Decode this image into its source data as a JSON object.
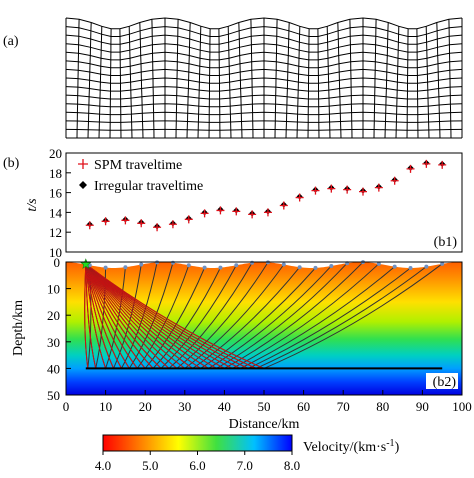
{
  "figure": {
    "panel_a_label": "(a)",
    "panel_b_label": "(b)"
  },
  "chart_data": [
    {
      "type": "scatter",
      "panel_tag": "(b1)",
      "ylabel": "t/s",
      "ylim": [
        10,
        20
      ],
      "yticks": [
        10,
        12,
        14,
        16,
        18,
        20
      ],
      "xlim": [
        0,
        100
      ],
      "series": [
        {
          "name": "SPM traveltime",
          "marker": "plus",
          "color": "#e0101a",
          "x": [
            6,
            10,
            15,
            19,
            23,
            27,
            31,
            35,
            39,
            43,
            47,
            51,
            55,
            59,
            63,
            67,
            71,
            75,
            79,
            83,
            87,
            91,
            95
          ],
          "y": [
            12.7,
            13.1,
            13.2,
            12.9,
            12.5,
            12.8,
            13.3,
            13.9,
            14.2,
            14.1,
            13.8,
            14.0,
            14.7,
            15.5,
            16.2,
            16.4,
            16.3,
            16.1,
            16.5,
            17.2,
            18.4,
            18.9,
            18.8
          ]
        },
        {
          "name": "Irregular traveltime",
          "marker": "diamond",
          "color": "#000000",
          "x": [
            6,
            10,
            15,
            19,
            23,
            27,
            31,
            35,
            39,
            43,
            47,
            51,
            55,
            59,
            63,
            67,
            71,
            75,
            79,
            83,
            87,
            91,
            95
          ],
          "y": [
            12.8,
            13.2,
            13.3,
            13.0,
            12.6,
            12.9,
            13.4,
            14.0,
            14.3,
            14.2,
            13.9,
            14.1,
            14.8,
            15.6,
            16.3,
            16.5,
            16.4,
            16.2,
            16.6,
            17.3,
            18.5,
            19.0,
            18.9
          ]
        }
      ]
    },
    {
      "type": "heatmap",
      "panel_tag": "(b2)",
      "xlabel": "Distance/km",
      "ylabel": "Depth/km",
      "xlim": [
        0,
        100
      ],
      "ylim": [
        50,
        0
      ],
      "xticks": [
        0,
        10,
        20,
        30,
        40,
        50,
        60,
        70,
        80,
        90,
        100
      ],
      "yticks": [
        0,
        10,
        20,
        30,
        40,
        50
      ],
      "source": {
        "x": 5,
        "depth": 0.8
      },
      "receivers_x": [
        6,
        10,
        15,
        19,
        23,
        27,
        31,
        35,
        39,
        43,
        47,
        51,
        55,
        59,
        63,
        67,
        71,
        75,
        79,
        83,
        87,
        91,
        95
      ],
      "reflector_depth": 40,
      "reflector_x": [
        5,
        95
      ],
      "colorbar": {
        "label": "Velocity/(km·s",
        "label_exp": "-1",
        "label_end": ")",
        "min": 4.0,
        "max": 8.0,
        "ticks": [
          "4.0",
          "5.0",
          "6.0",
          "7.0",
          "8.0"
        ],
        "colors": [
          "#ff0000",
          "#ff8000",
          "#ffff00",
          "#40e040",
          "#00c0ff",
          "#0000ff"
        ]
      }
    }
  ]
}
